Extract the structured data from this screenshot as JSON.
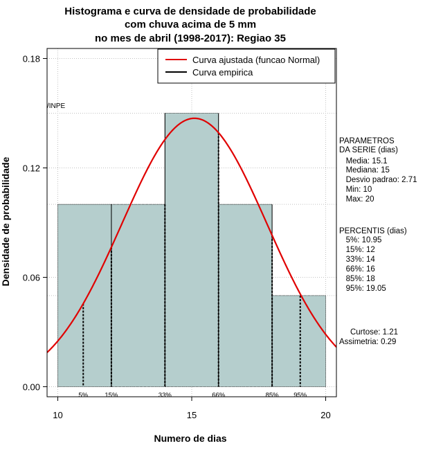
{
  "chart_data": {
    "type": "bar",
    "title_lines": [
      "Histograma e curva de densidade de probabilidade",
      "com chuva acima de 5 mm",
      "no mes de abril (1998-2017): Regiao 35"
    ],
    "xlabel": "Numero de dias",
    "ylabel": "Densidade de probabilidade",
    "xlim": [
      9.6,
      20.4
    ],
    "ylim": [
      -0.0055,
      0.1855
    ],
    "x_ticks": [
      {
        "value": 10,
        "label": "10"
      },
      {
        "value": 15,
        "label": "15"
      },
      {
        "value": 20,
        "label": "20"
      }
    ],
    "y_ticks": [
      {
        "value": 0.0,
        "label": "0.00"
      },
      {
        "value": 0.06,
        "label": "0.06"
      },
      {
        "value": 0.12,
        "label": "0.12"
      },
      {
        "value": 0.18,
        "label": "0.18"
      }
    ],
    "grid": true,
    "bars": [
      {
        "x0": 10,
        "x1": 12,
        "density": 0.1
      },
      {
        "x0": 12,
        "x1": 14,
        "density": 0.1
      },
      {
        "x0": 14,
        "x1": 16,
        "density": 0.15
      },
      {
        "x0": 16,
        "x1": 18,
        "density": 0.1
      },
      {
        "x0": 18,
        "x1": 20,
        "density": 0.05
      }
    ],
    "normal_curve": {
      "mean": 15.1,
      "sd": 2.71
    },
    "percentile_lines": [
      {
        "x": 10.95,
        "label": "5%"
      },
      {
        "x": 12,
        "label": "15%"
      },
      {
        "x": 14,
        "label": "33%"
      },
      {
        "x": 16,
        "label": "66%"
      },
      {
        "x": 18,
        "label": "85%"
      },
      {
        "x": 19.05,
        "label": "95%"
      }
    ],
    "legend": {
      "position": "top-right",
      "entries": [
        {
          "label": "Curva ajustada (funcao Normal)",
          "color": "#e00000"
        },
        {
          "label": "Curva empirica",
          "color": "#000000"
        }
      ]
    },
    "source_label": "/INPE",
    "colors": {
      "bar_fill": "#b5cecd",
      "curve": "#e00000",
      "grid": "#c0c0c0"
    }
  },
  "side_panel": {
    "params_lines": [
      "PARAMETROS",
      "DA SERIE (dias)",
      "   Media: 15.1",
      "   Mediana: 15",
      "   Desvio padrao: 2.71",
      "   Min: 10",
      "   Max: 20"
    ],
    "percentis_lines": [
      "PERCENTIS (dias)",
      "   5%: 10.95",
      "   15%: 12",
      "   33%: 14",
      "   66%: 16",
      "   85%: 18",
      "   95%: 19.05"
    ],
    "stats_lines": [
      "     Curtose: 1.21",
      "Assimetria: 0.29"
    ]
  }
}
